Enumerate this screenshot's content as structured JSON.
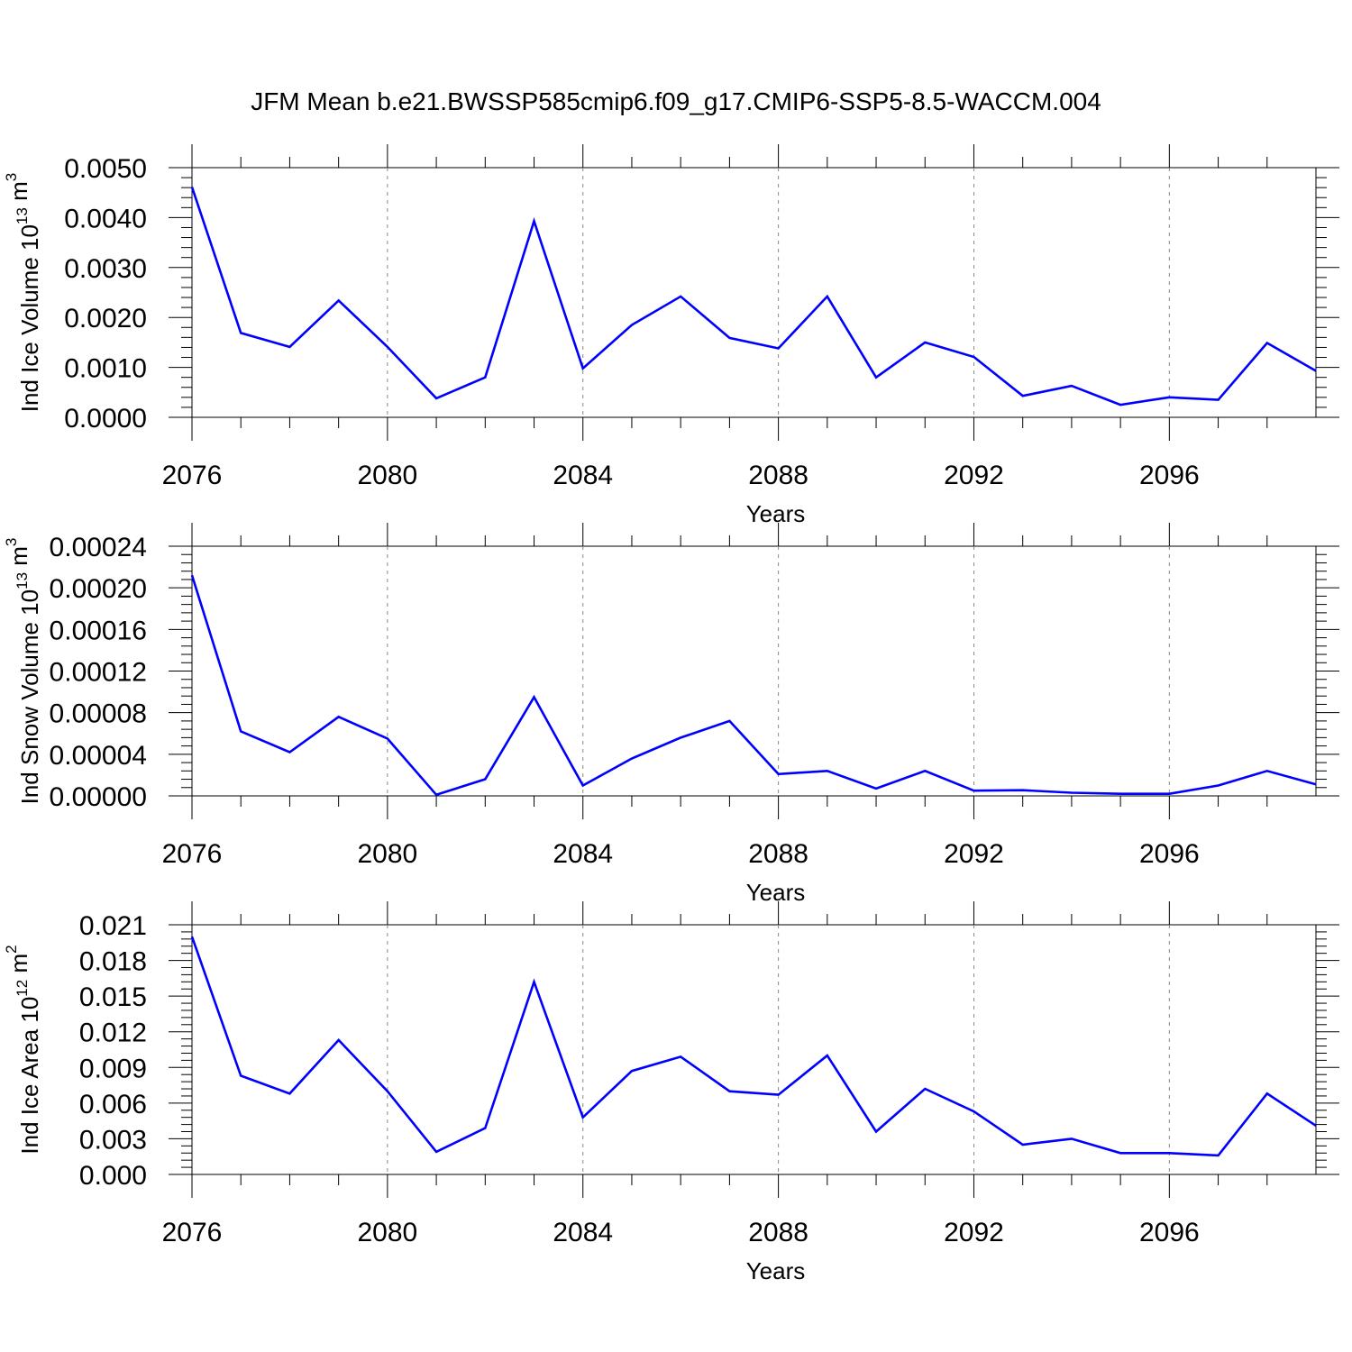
{
  "figure": {
    "title": "JFM Mean b.e21.BWSSP585cmip6.f09_g17.CMIP6-SSP5-8.5-WACCM.004",
    "line_color": "#0000ff",
    "grid_color": "#888888"
  },
  "chart_data": [
    {
      "type": "line",
      "title": "JFM Mean b.e21.BWSSP585cmip6.f09_g17.CMIP6-SSP5-8.5-WACCM.004",
      "xlabel": "Years",
      "ylabel": "Ind Ice Volume 10",
      "ylabel_exp": "13",
      "ylabel_unit": " m",
      "ylabel_unit_exp": "3",
      "xlim": [
        2076,
        2099
      ],
      "ylim": [
        0.0,
        0.005
      ],
      "xticks": [
        2076,
        2080,
        2084,
        2088,
        2092,
        2096
      ],
      "yticks": [
        "0.0000",
        "0.0010",
        "0.0020",
        "0.0030",
        "0.0040",
        "0.0050"
      ],
      "ytick_values": [
        0.0,
        0.001,
        0.002,
        0.003,
        0.004,
        0.005
      ],
      "x": [
        2076,
        2077,
        2078,
        2079,
        2080,
        2081,
        2082,
        2083,
        2084,
        2085,
        2086,
        2087,
        2088,
        2089,
        2090,
        2091,
        2092,
        2093,
        2094,
        2095,
        2096,
        2097,
        2098,
        2099
      ],
      "series": [
        {
          "values": [
            0.00461,
            0.00169,
            0.00141,
            0.00234,
            0.00141,
            0.00038,
            0.0008,
            0.00393,
            0.00098,
            0.00185,
            0.00242,
            0.00159,
            0.00138,
            0.00242,
            0.0008,
            0.0015,
            0.00121,
            0.00043,
            0.00063,
            0.00025,
            0.0004,
            0.00035,
            0.00149,
            0.00093
          ]
        }
      ]
    },
    {
      "type": "line",
      "xlabel": "Years",
      "ylabel": "Ind Snow Volume 10",
      "ylabel_exp": "13",
      "ylabel_unit": " m",
      "ylabel_unit_exp": "3",
      "xlim": [
        2076,
        2099
      ],
      "ylim": [
        0.0,
        0.00024
      ],
      "xticks": [
        2076,
        2080,
        2084,
        2088,
        2092,
        2096
      ],
      "yticks": [
        "0.00000",
        "0.00004",
        "0.00008",
        "0.00012",
        "0.00016",
        "0.00020",
        "0.00024"
      ],
      "ytick_values": [
        0.0,
        4e-05,
        8e-05,
        0.00012,
        0.00016,
        0.0002,
        0.00024
      ],
      "x": [
        2076,
        2077,
        2078,
        2079,
        2080,
        2081,
        2082,
        2083,
        2084,
        2085,
        2086,
        2087,
        2088,
        2089,
        2090,
        2091,
        2092,
        2093,
        2094,
        2095,
        2096,
        2097,
        2098,
        2099
      ],
      "series": [
        {
          "values": [
            0.000212,
            6.2e-05,
            4.2e-05,
            7.6e-05,
            5.5e-05,
            1e-06,
            1.6e-05,
            9.5e-05,
            1e-05,
            3.6e-05,
            5.6e-05,
            7.2e-05,
            2.1e-05,
            2.4e-05,
            7e-06,
            2.4e-05,
            5e-06,
            5.5e-06,
            3e-06,
            2e-06,
            2e-06,
            1e-05,
            2.4e-05,
            1.1e-05
          ]
        }
      ]
    },
    {
      "type": "line",
      "xlabel": "Years",
      "ylabel": "Ind Ice Area 10",
      "ylabel_exp": "12",
      "ylabel_unit": " m",
      "ylabel_unit_exp": "2",
      "xlim": [
        2076,
        2099
      ],
      "ylim": [
        0.0,
        0.021
      ],
      "xticks": [
        2076,
        2080,
        2084,
        2088,
        2092,
        2096
      ],
      "yticks": [
        "0.000",
        "0.003",
        "0.006",
        "0.009",
        "0.012",
        "0.015",
        "0.018",
        "0.021"
      ],
      "ytick_values": [
        0.0,
        0.003,
        0.006,
        0.009,
        0.012,
        0.015,
        0.018,
        0.021
      ],
      "x": [
        2076,
        2077,
        2078,
        2079,
        2080,
        2081,
        2082,
        2083,
        2084,
        2085,
        2086,
        2087,
        2088,
        2089,
        2090,
        2091,
        2092,
        2093,
        2094,
        2095,
        2096,
        2097,
        2098,
        2099
      ],
      "series": [
        {
          "values": [
            0.02,
            0.0083,
            0.0068,
            0.0113,
            0.007,
            0.0019,
            0.0039,
            0.0162,
            0.0048,
            0.0087,
            0.0099,
            0.007,
            0.0067,
            0.01,
            0.0036,
            0.0072,
            0.0053,
            0.0025,
            0.003,
            0.0018,
            0.0018,
            0.0016,
            0.0068,
            0.0041
          ]
        }
      ]
    }
  ]
}
